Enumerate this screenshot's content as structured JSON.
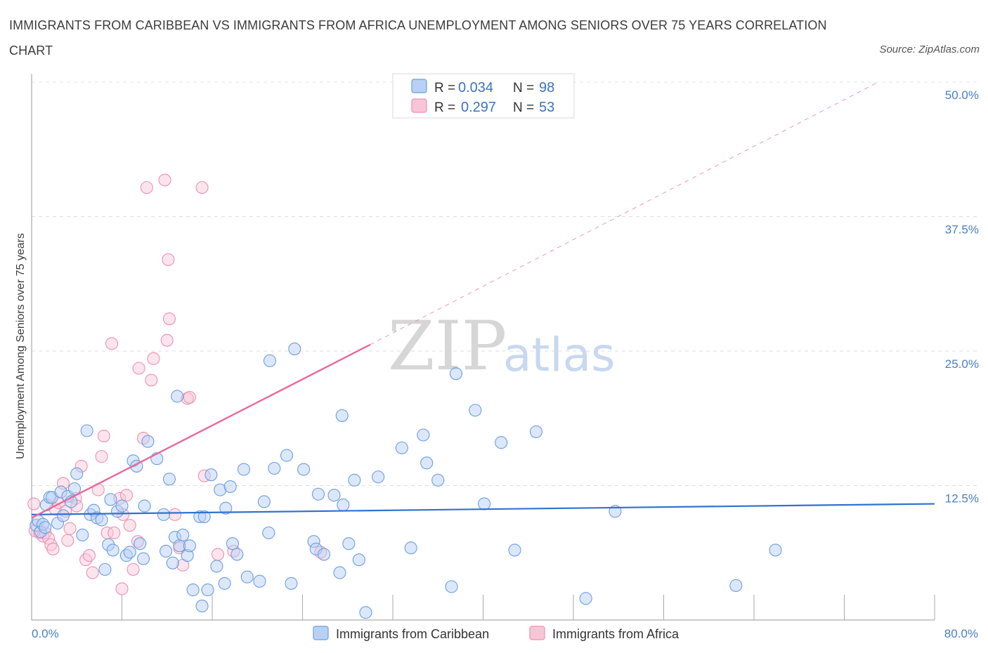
{
  "title": "IMMIGRANTS FROM CARIBBEAN VS IMMIGRANTS FROM AFRICA UNEMPLOYMENT AMONG SENIORS OVER 75 YEARS CORRELATION CHART",
  "source": "Source: ZipAtlas.com",
  "colors": {
    "blue": "#6b9fe0",
    "blue_fill": "#b9d0f5",
    "pink": "#ee8fb0",
    "pink_fill": "#f7c6d6",
    "blue_line": "#2f72d0",
    "pink_line": "#e8699a",
    "tick": "#4a7fc1"
  },
  "chart_data": {
    "type": "scatter",
    "title": "IMMIGRANTS FROM CARIBBEAN VS IMMIGRANTS FROM AFRICA UNEMPLOYMENT AMONG SENIORS OVER 75 YEARS CORRELATION CHART",
    "xlabel": "",
    "ylabel": "Unemployment Among Seniors over 75 years",
    "xlim": [
      0,
      80
    ],
    "ylim": [
      0,
      50
    ],
    "x_tick_labels": [
      "0.0%",
      "80.0%"
    ],
    "y_ticks": [
      12.5,
      25.0,
      37.5,
      50.0
    ],
    "y_tick_labels": [
      "12.5%",
      "25.0%",
      "37.5%",
      "50.0%"
    ],
    "grid": true,
    "legend_top": [
      {
        "r_label": "R =",
        "r_value": "0.034",
        "n_label": "N =",
        "n_value": "98"
      },
      {
        "r_label": "R =",
        "r_value": "0.297",
        "n_label": "N =",
        "n_value": "53"
      }
    ],
    "series": [
      {
        "name": "Immigrants from Caribbean",
        "trend": {
          "x": [
            0,
            80
          ],
          "y": [
            9.8,
            10.8
          ],
          "dashed_extension": false
        },
        "points": [
          [
            0.4,
            8.8
          ],
          [
            0.6,
            9.2
          ],
          [
            0.8,
            8.2
          ],
          [
            1.0,
            8.9
          ],
          [
            1.2,
            8.6
          ],
          [
            1.3,
            10.7
          ],
          [
            1.6,
            11.4
          ],
          [
            1.8,
            11.4
          ],
          [
            2.3,
            9.0
          ],
          [
            2.6,
            11.9
          ],
          [
            2.8,
            9.7
          ],
          [
            3.2,
            11.5
          ],
          [
            3.5,
            11.0
          ],
          [
            3.8,
            12.2
          ],
          [
            4.0,
            13.6
          ],
          [
            4.5,
            7.9
          ],
          [
            4.9,
            17.6
          ],
          [
            5.2,
            9.8
          ],
          [
            5.5,
            10.2
          ],
          [
            5.8,
            9.5
          ],
          [
            6.2,
            9.3
          ],
          [
            6.5,
            4.7
          ],
          [
            6.8,
            7.0
          ],
          [
            7.0,
            11.2
          ],
          [
            7.2,
            6.5
          ],
          [
            7.6,
            10.1
          ],
          [
            8.0,
            10.6
          ],
          [
            8.4,
            6.0
          ],
          [
            8.7,
            6.3
          ],
          [
            9.0,
            14.8
          ],
          [
            9.3,
            14.3
          ],
          [
            9.6,
            7.1
          ],
          [
            9.9,
            5.7
          ],
          [
            10.0,
            10.6
          ],
          [
            10.3,
            16.6
          ],
          [
            11.1,
            15.0
          ],
          [
            11.7,
            9.8
          ],
          [
            11.9,
            6.4
          ],
          [
            12.2,
            13.1
          ],
          [
            12.5,
            5.3
          ],
          [
            12.7,
            7.7
          ],
          [
            12.9,
            20.8
          ],
          [
            13.1,
            6.9
          ],
          [
            13.4,
            7.9
          ],
          [
            13.8,
            6.0
          ],
          [
            14.0,
            6.9
          ],
          [
            14.3,
            2.8
          ],
          [
            14.9,
            9.6
          ],
          [
            15.1,
            1.3
          ],
          [
            15.3,
            9.6
          ],
          [
            15.6,
            2.8
          ],
          [
            15.9,
            13.5
          ],
          [
            16.4,
            5.0
          ],
          [
            16.7,
            12.1
          ],
          [
            17.1,
            3.4
          ],
          [
            17.2,
            10.4
          ],
          [
            17.6,
            12.4
          ],
          [
            17.8,
            7.1
          ],
          [
            18.2,
            6.1
          ],
          [
            18.8,
            14.0
          ],
          [
            19.1,
            4.0
          ],
          [
            20.2,
            3.6
          ],
          [
            20.6,
            11.0
          ],
          [
            21.0,
            8.1
          ],
          [
            21.1,
            24.1
          ],
          [
            21.5,
            14.1
          ],
          [
            22.6,
            15.3
          ],
          [
            23.0,
            3.4
          ],
          [
            23.3,
            25.2
          ],
          [
            24.1,
            14.0
          ],
          [
            25.0,
            7.3
          ],
          [
            25.2,
            6.6
          ],
          [
            25.4,
            11.7
          ],
          [
            25.9,
            6.1
          ],
          [
            26.8,
            11.6
          ],
          [
            27.3,
            4.4
          ],
          [
            27.6,
            10.7
          ],
          [
            27.5,
            19.0
          ],
          [
            28.1,
            7.1
          ],
          [
            28.6,
            13.0
          ],
          [
            29.0,
            5.6
          ],
          [
            29.6,
            0.7
          ],
          [
            30.7,
            13.3
          ],
          [
            32.8,
            16.0
          ],
          [
            33.6,
            6.7
          ],
          [
            34.7,
            17.2
          ],
          [
            35.0,
            14.6
          ],
          [
            36.0,
            13.0
          ],
          [
            37.2,
            3.1
          ],
          [
            37.6,
            22.9
          ],
          [
            39.3,
            19.5
          ],
          [
            40.1,
            10.8
          ],
          [
            41.6,
            16.5
          ],
          [
            42.8,
            6.5
          ],
          [
            44.7,
            17.5
          ],
          [
            49.1,
            2.0
          ],
          [
            51.7,
            10.1
          ],
          [
            62.4,
            3.2
          ],
          [
            65.9,
            6.5
          ]
        ]
      },
      {
        "name": "Immigrants from Africa",
        "trend": {
          "x": [
            0,
            30.0
          ],
          "y": [
            9.5,
            25.6
          ],
          "dash_x": [
            30.0,
            75.0
          ],
          "dash_y": [
            25.6,
            50.0
          ]
        },
        "points": [
          [
            0.2,
            10.8
          ],
          [
            0.3,
            8.3
          ],
          [
            0.7,
            8.1
          ],
          [
            1.0,
            7.8
          ],
          [
            1.2,
            8.1
          ],
          [
            1.5,
            7.6
          ],
          [
            1.7,
            7.0
          ],
          [
            1.9,
            6.6
          ],
          [
            2.1,
            10.3
          ],
          [
            2.4,
            10.9
          ],
          [
            2.8,
            12.7
          ],
          [
            3.0,
            10.1
          ],
          [
            3.2,
            7.4
          ],
          [
            3.4,
            8.5
          ],
          [
            3.9,
            11.3
          ],
          [
            4.0,
            10.6
          ],
          [
            4.4,
            14.3
          ],
          [
            4.8,
            5.6
          ],
          [
            5.1,
            6.0
          ],
          [
            5.4,
            4.4
          ],
          [
            5.9,
            12.1
          ],
          [
            6.2,
            15.2
          ],
          [
            6.4,
            17.1
          ],
          [
            6.7,
            8.1
          ],
          [
            7.1,
            25.7
          ],
          [
            7.3,
            8.1
          ],
          [
            7.8,
            11.3
          ],
          [
            8.0,
            2.9
          ],
          [
            8.1,
            9.8
          ],
          [
            8.4,
            11.6
          ],
          [
            8.7,
            8.8
          ],
          [
            9.0,
            4.7
          ],
          [
            9.4,
            7.3
          ],
          [
            9.5,
            23.4
          ],
          [
            9.9,
            16.9
          ],
          [
            10.2,
            40.2
          ],
          [
            10.6,
            22.3
          ],
          [
            10.8,
            24.3
          ],
          [
            11.8,
            40.9
          ],
          [
            12.0,
            26.0
          ],
          [
            12.1,
            33.5
          ],
          [
            12.2,
            28.0
          ],
          [
            12.7,
            9.8
          ],
          [
            13.1,
            6.7
          ],
          [
            13.4,
            5.1
          ],
          [
            13.8,
            20.6
          ],
          [
            14.0,
            20.7
          ],
          [
            15.1,
            40.2
          ],
          [
            15.3,
            13.4
          ],
          [
            16.5,
            6.1
          ],
          [
            17.9,
            6.4
          ],
          [
            25.6,
            6.3
          ]
        ]
      }
    ],
    "bottom_legend": [
      "Immigrants from Caribbean",
      "Immigrants from Africa"
    ],
    "watermark": {
      "zip": "ZIP",
      "atlas": "atlas"
    }
  }
}
